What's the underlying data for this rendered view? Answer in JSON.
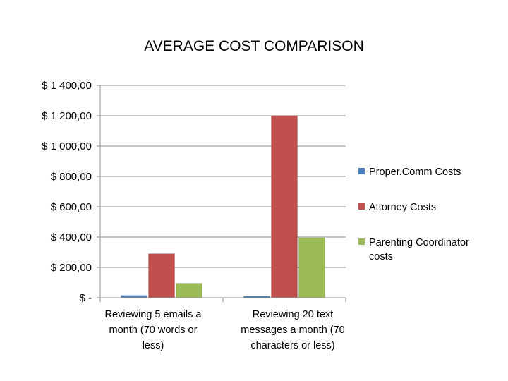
{
  "chart_data": {
    "type": "bar",
    "title": "AVERAGE COST COMPARISON",
    "categories": [
      [
        "Reviewing 5 emails a",
        "month (70 words or",
        "less)"
      ],
      [
        "Reviewing 20 text",
        "messages a month (70",
        "characters or less)"
      ]
    ],
    "series": [
      {
        "name": "Proper.Comm Costs",
        "values": [
          15,
          10
        ],
        "color": "#4F81BD"
      },
      {
        "name": "Attorney Costs",
        "values": [
          290,
          1200
        ],
        "color": "#C0504D"
      },
      {
        "name": "Parenting Coordinator costs",
        "legend_lines": [
          "Parenting Coordinator",
          "costs"
        ],
        "values": [
          95,
          395
        ],
        "color": "#9BBB59"
      }
    ],
    "y_ticks": [
      {
        "value": 0,
        "label": "$ -"
      },
      {
        "value": 200,
        "label": "$ 200,00"
      },
      {
        "value": 400,
        "label": "$ 400,00"
      },
      {
        "value": 600,
        "label": "$ 600,00"
      },
      {
        "value": 800,
        "label": "$ 800,00"
      },
      {
        "value": 1000,
        "label": "$ 1 000,00"
      },
      {
        "value": 1200,
        "label": "$ 1 200,00"
      },
      {
        "value": 1400,
        "label": "$ 1 400,00"
      }
    ],
    "ylim": [
      0,
      1400
    ],
    "grid": true,
    "legend": "right"
  }
}
